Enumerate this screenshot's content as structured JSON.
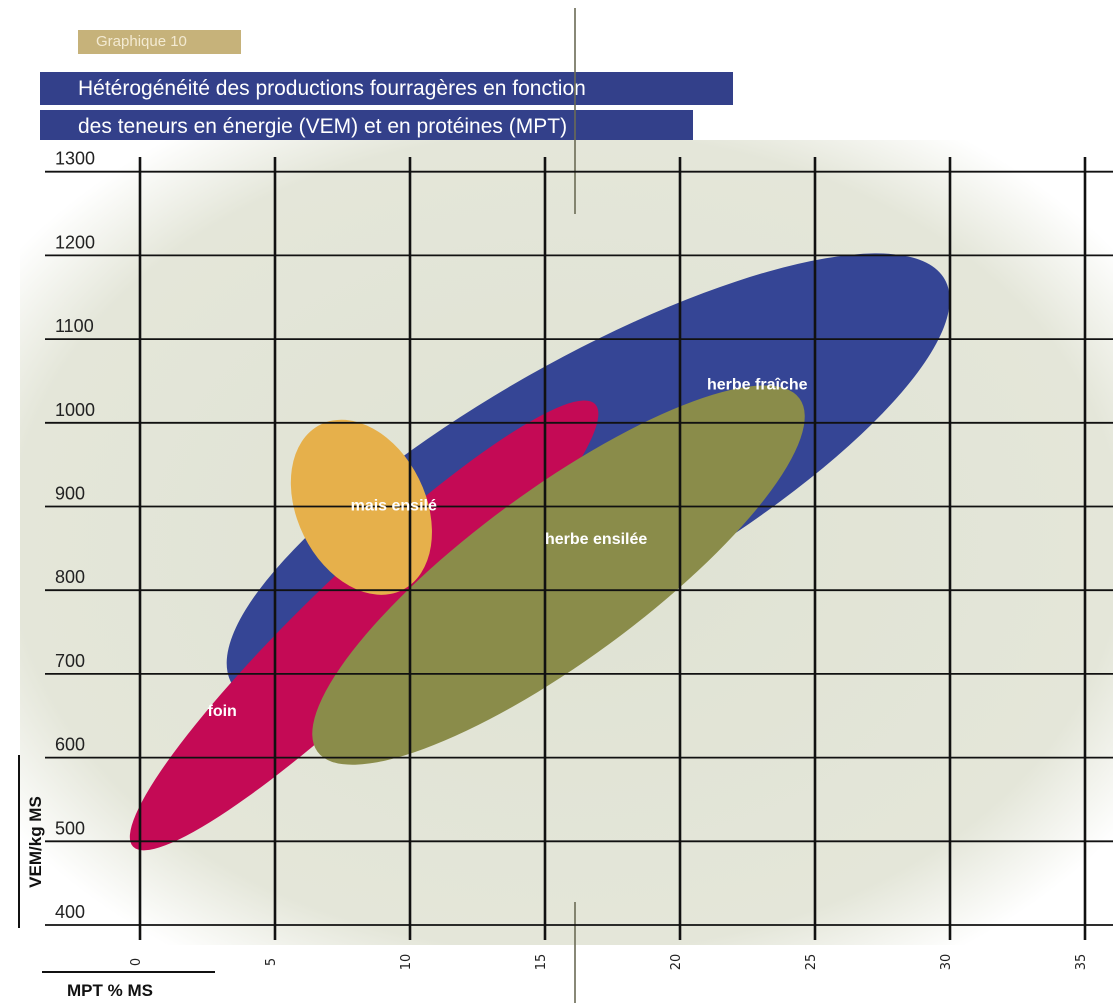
{
  "header": {
    "tag": "Graphique 10",
    "title_line1": "Hétérogénéité des productions fourragères en fonction",
    "title_line2": "des teneurs en énergie (VEM) et en protéines (MPT)"
  },
  "chart_data": {
    "type": "scatter",
    "title": "Hétérogénéité des productions fourragères en fonction des teneurs en énergie (VEM) et en protéines (MPT)",
    "xlabel": "MPT % MS",
    "ylabel": "VEM/kg MS",
    "xlim": [
      0,
      35
    ],
    "ylim": [
      400,
      1300
    ],
    "xticks": [
      0,
      5,
      10,
      15,
      20,
      25,
      30,
      35
    ],
    "yticks": [
      400,
      500,
      600,
      700,
      800,
      900,
      1000,
      1100,
      1200,
      1300
    ],
    "grid": true,
    "regions": [
      {
        "name": "herbe fraîche",
        "label": "herbe fraîche",
        "color": "#354595",
        "center": [
          16.6,
          930
        ],
        "x_range": [
          2,
          30.5
        ],
        "y_range": [
          725,
          1170
        ],
        "rotation_deg": -23,
        "label_at": [
          21,
          1040
        ]
      },
      {
        "name": "foin",
        "label": "foin",
        "color": "#c40a55",
        "center": [
          8.3,
          758
        ],
        "x_range": [
          -0.5,
          17.5
        ],
        "y_range": [
          505,
          1020
        ],
        "rotation_deg": -35,
        "label_at": [
          2.5,
          650
        ]
      },
      {
        "name": "herbe ensilée",
        "label": "herbe ensilée",
        "color": "#8a8c4a",
        "center": [
          15.5,
          818
        ],
        "x_range": [
          5,
          24.5
        ],
        "y_range": [
          620,
          1015
        ],
        "rotation_deg": -27,
        "label_at": [
          15,
          855
        ]
      },
      {
        "name": "maïs ensilé",
        "label": "mais ensilé",
        "color": "#e6b04b",
        "center": [
          8.2,
          899
        ],
        "x_range": [
          5.2,
          10.4
        ],
        "y_range": [
          795,
          1005
        ],
        "rotation_deg": 8,
        "label_at": [
          7.8,
          895
        ]
      }
    ]
  },
  "colors": {
    "plot_background": "#dfe2d3",
    "grid": "#111111",
    "title_bar": "#33408a",
    "tag": "#c6b27a"
  }
}
